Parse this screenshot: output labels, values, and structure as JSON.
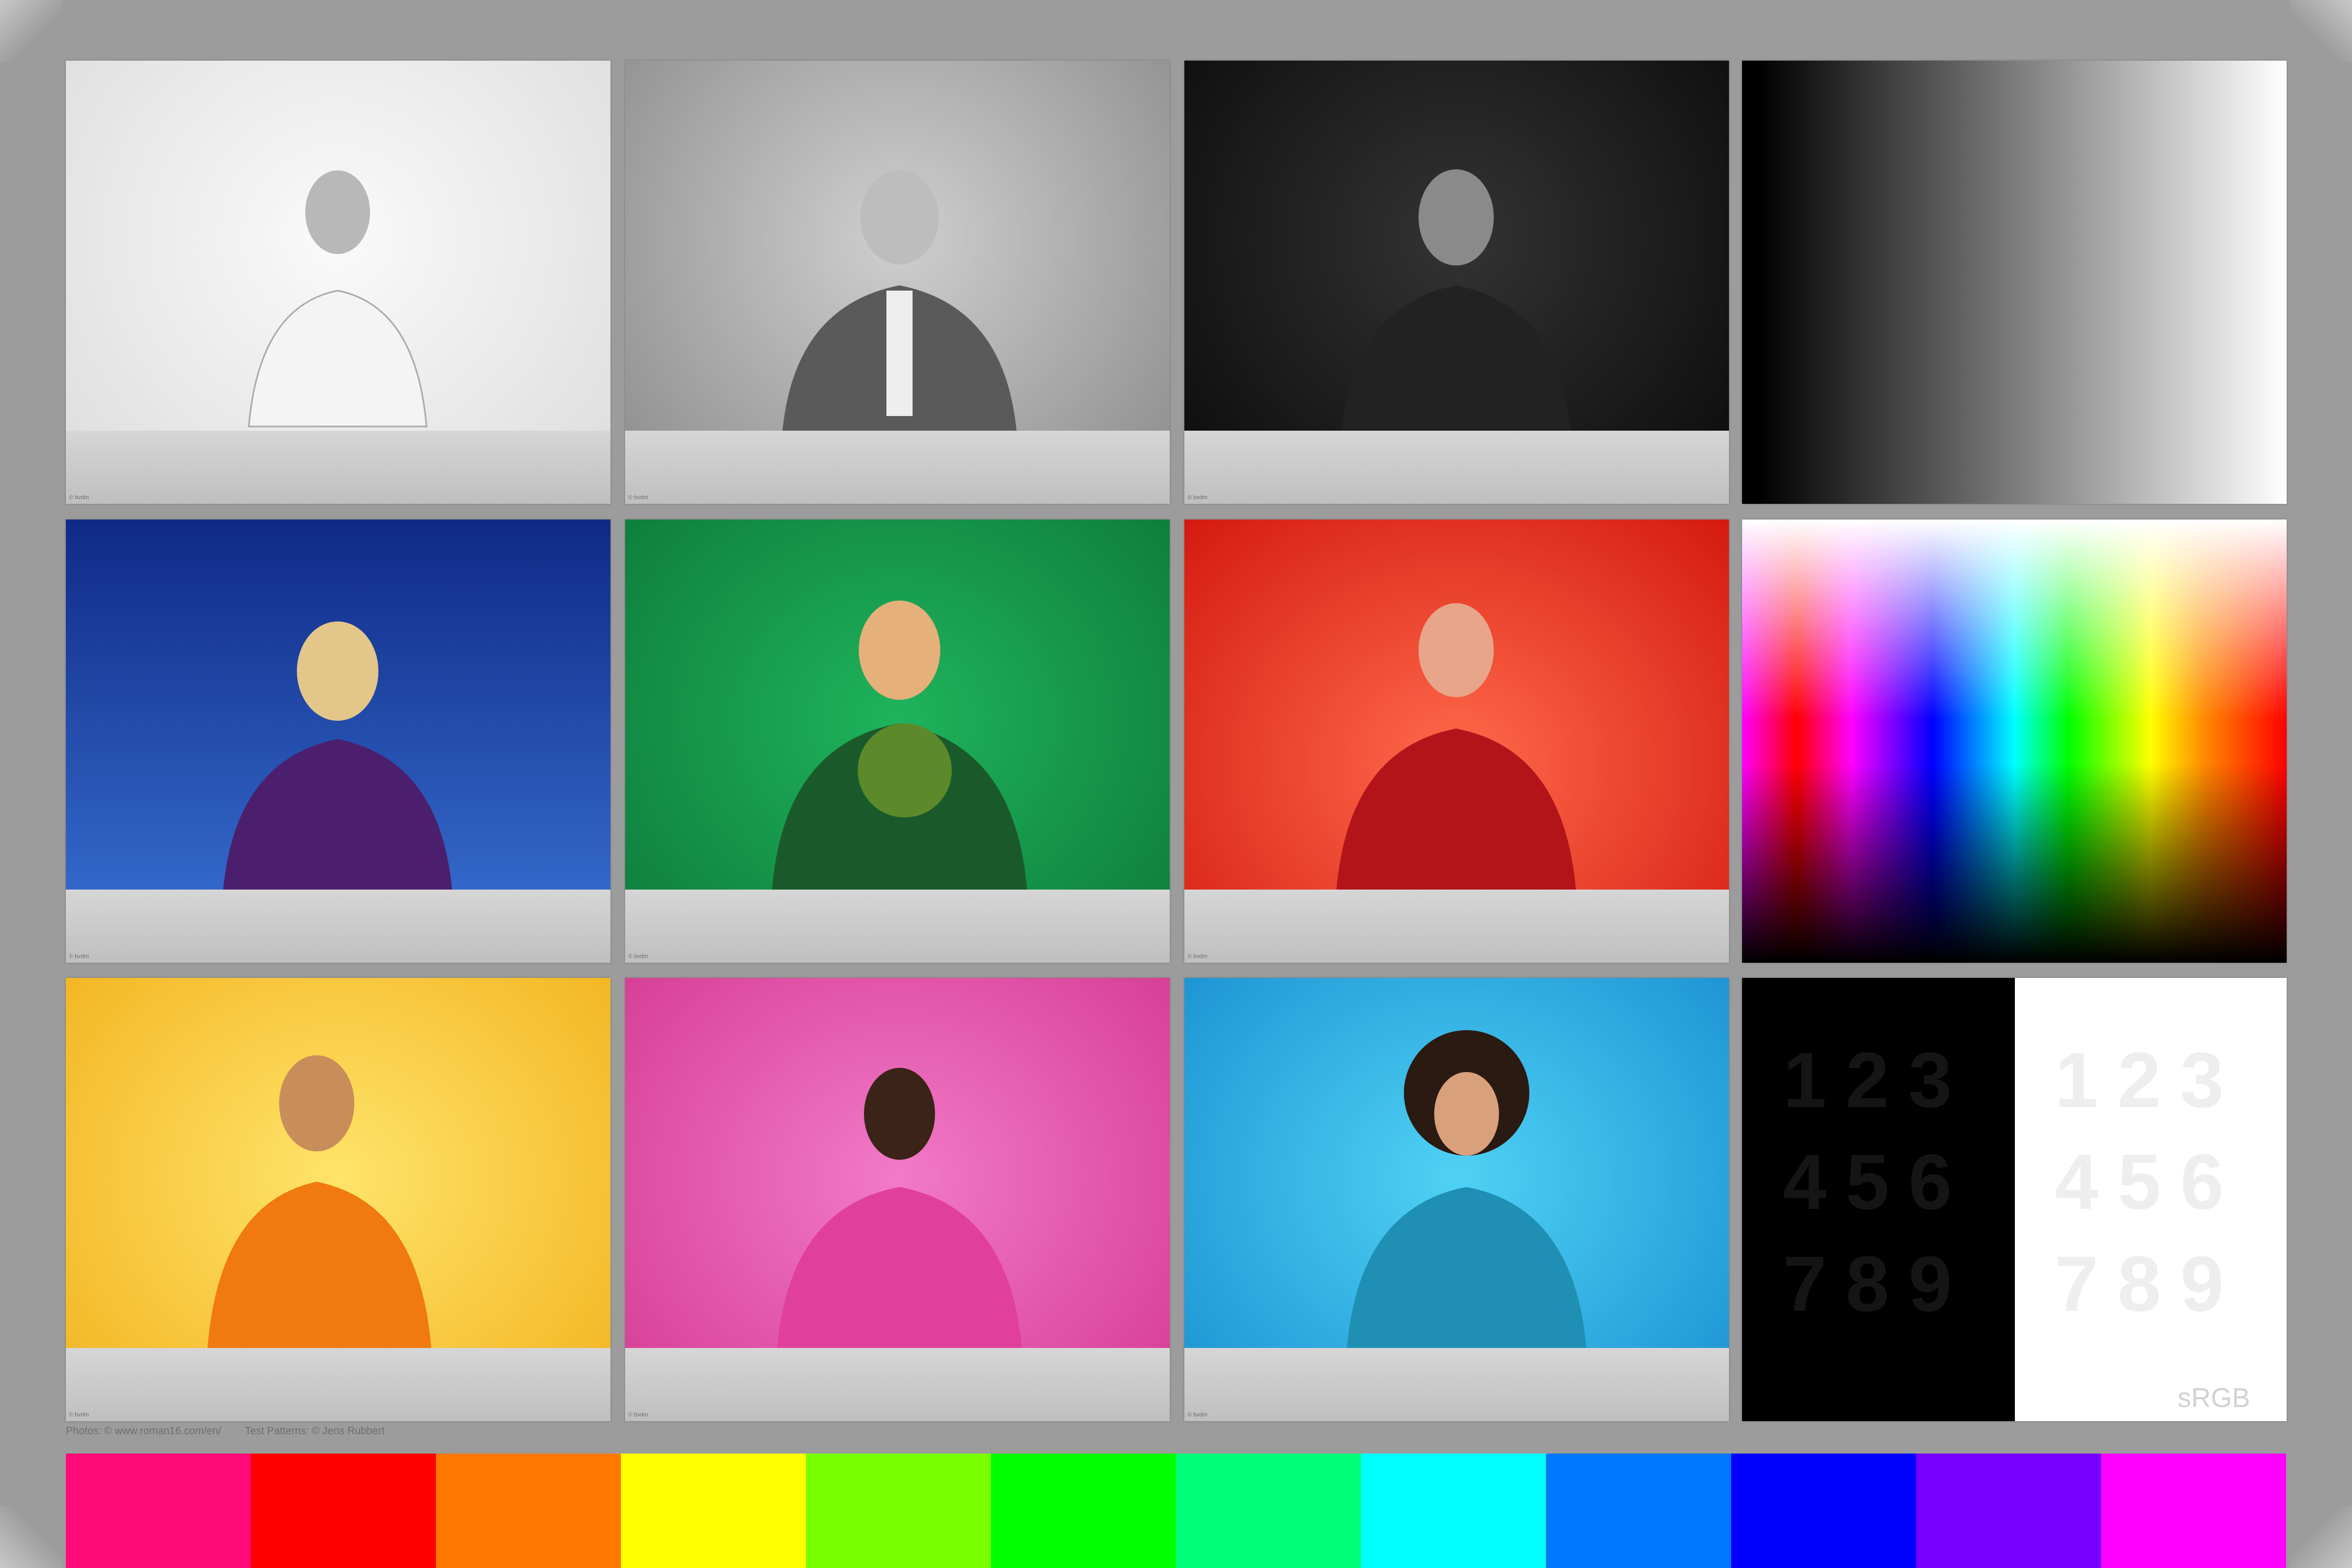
{
  "tiles": [
    {
      "id": "portrait-asian-woman-gray",
      "bg": "#dcdcdc",
      "watermark": "© bvdm"
    },
    {
      "id": "portrait-businessman-gray",
      "bg": "#8a8a8a",
      "watermark": "© bvdm"
    },
    {
      "id": "portrait-man-scarf-dark",
      "bg": "#111111",
      "watermark": "© bvdm"
    },
    {
      "id": "grayscale-gradient",
      "type": "gradient"
    },
    {
      "id": "portrait-blonde-blue",
      "bg": "#1e4cc0",
      "watermark": "© bvdm"
    },
    {
      "id": "portrait-gardener-green",
      "bg": "#159a4a",
      "watermark": "© bvdm"
    },
    {
      "id": "portrait-woman-red",
      "bg": "#f03a24",
      "watermark": "© bvdm"
    },
    {
      "id": "color-spectrum",
      "type": "spectrum"
    },
    {
      "id": "portrait-woman-yellow",
      "bg": "#f7cc3e",
      "watermark": "© bvdm"
    },
    {
      "id": "portrait-woman-pink",
      "bg": "#e85eb0",
      "watermark": "© bvdm"
    },
    {
      "id": "portrait-dj-cyan",
      "bg": "#29b3e6",
      "watermark": "© bvdm"
    },
    {
      "id": "number-contrast-test",
      "type": "numbers"
    }
  ],
  "numbers": [
    "1",
    "2",
    "3",
    "4",
    "5",
    "6",
    "7",
    "8",
    "9"
  ],
  "srgb_label": "sRGB",
  "credits": {
    "photos": "Photos: © www.roman16.com/en/",
    "patterns": "Test Patterns: © Jens Rubbert"
  },
  "color_bar": [
    "#ff0a78",
    "#ff0000",
    "#ff7800",
    "#ffff00",
    "#78ff00",
    "#00ff00",
    "#00ff78",
    "#00ffff",
    "#0078ff",
    "#0000ff",
    "#7800ff",
    "#ff00ff"
  ]
}
